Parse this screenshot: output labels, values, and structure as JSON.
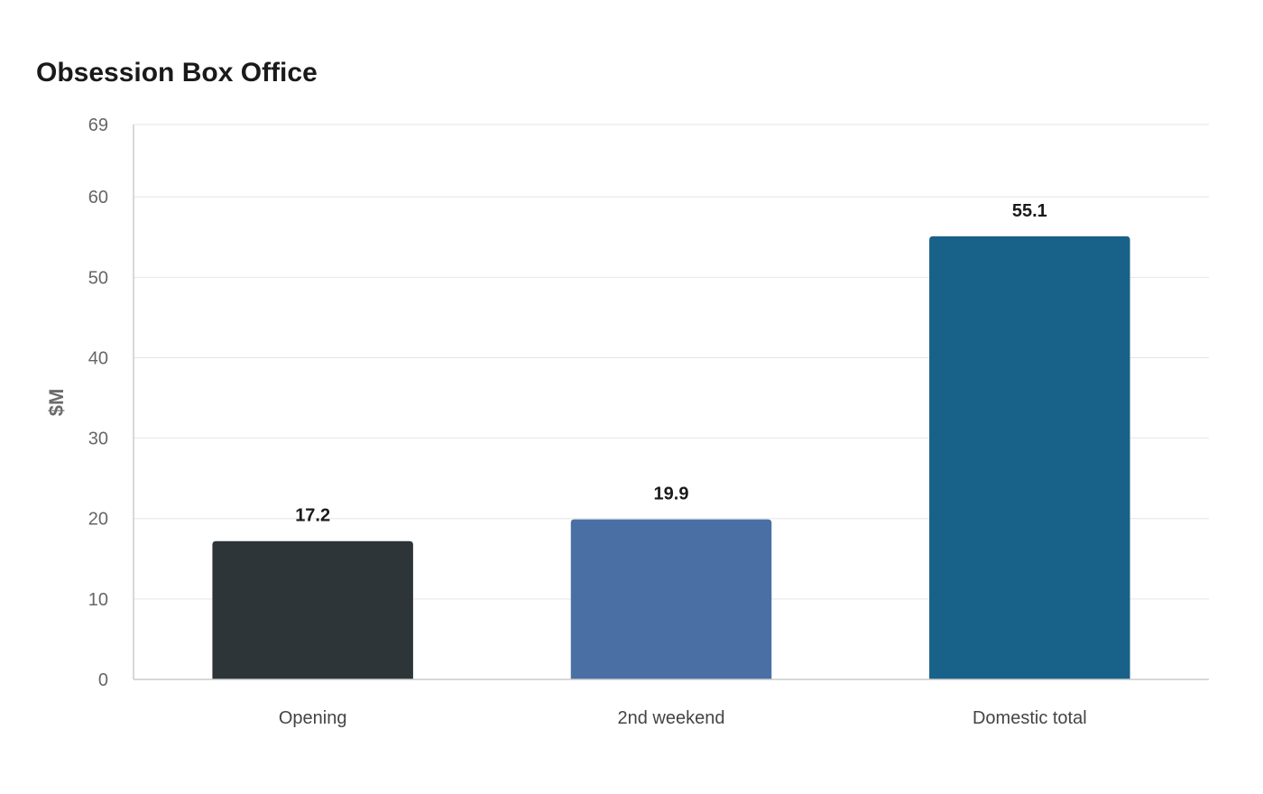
{
  "chart_data": {
    "type": "bar",
    "title": "Obsession Box Office",
    "xlabel": "",
    "ylabel": "$M",
    "categories": [
      "Opening",
      "2nd weekend",
      "Domestic total"
    ],
    "values": [
      17.2,
      19.9,
      55.1
    ],
    "value_labels": [
      "17.2",
      "19.9",
      "55.1"
    ],
    "colors": [
      "#2e3538",
      "#4a6fa5",
      "#186188"
    ],
    "ylim": [
      0,
      69
    ],
    "yticks": [
      0,
      10,
      20,
      30,
      40,
      50,
      60,
      69
    ],
    "ytick_labels": [
      "0",
      "10",
      "20",
      "30",
      "40",
      "50",
      "60",
      "69"
    ],
    "grid": true
  }
}
